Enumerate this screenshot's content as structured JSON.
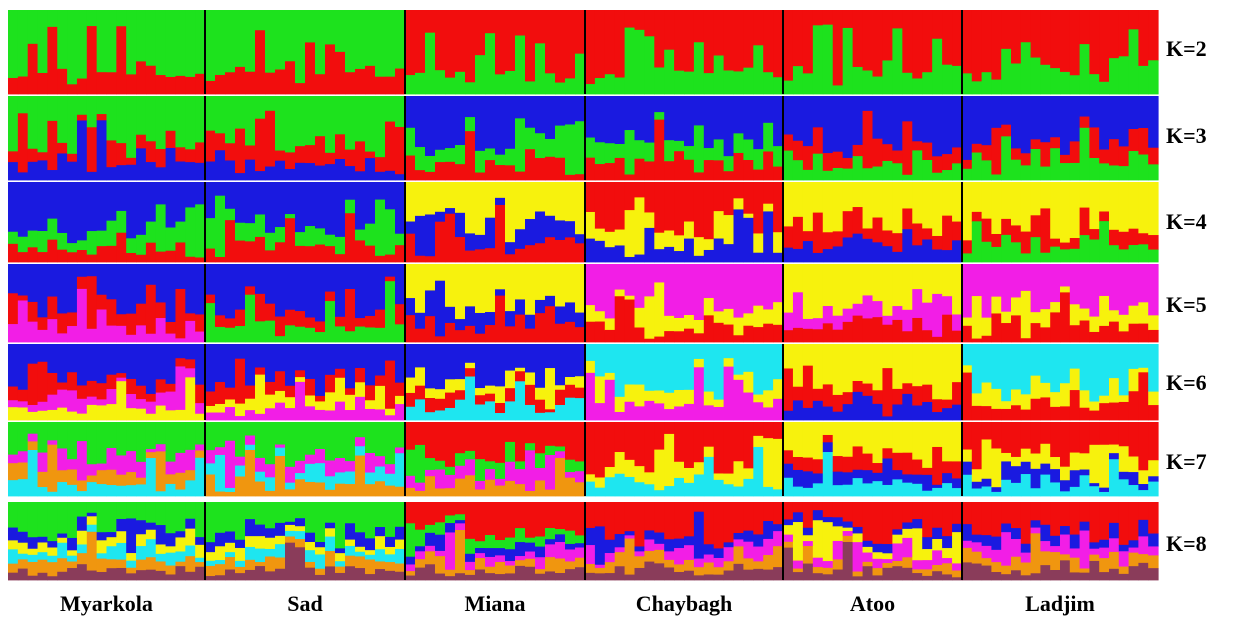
{
  "chart_data": {
    "type": "stacked-bar",
    "populations": [
      {
        "name": "Myarkola",
        "n": 20
      },
      {
        "name": "Sad",
        "n": 20
      },
      {
        "name": "Miana",
        "n": 18
      },
      {
        "name": "Chaybagh",
        "n": 20
      },
      {
        "name": "Atoo",
        "n": 18
      },
      {
        "name": "Ladjim",
        "n": 20
      }
    ],
    "panels": [
      {
        "label": "K=2",
        "dominant": {
          "Myarkola": [
            "green",
            "red"
          ],
          "Sad": [
            "green",
            "red"
          ],
          "Miana": [
            "red",
            "green"
          ],
          "Chaybagh": [
            "red",
            "green"
          ],
          "Atoo": [
            "red",
            "green"
          ],
          "Ladjim": [
            "red",
            "green"
          ]
        }
      },
      {
        "label": "K=3",
        "dominant": {
          "Myarkola": [
            "green",
            "red",
            "blue"
          ],
          "Sad": [
            "green",
            "red",
            "blue"
          ],
          "Miana": [
            "blue",
            "green",
            "red"
          ],
          "Chaybagh": [
            "blue",
            "green",
            "red"
          ],
          "Atoo": [
            "blue",
            "red",
            "green"
          ],
          "Ladjim": [
            "blue",
            "red",
            "green"
          ]
        }
      },
      {
        "label": "K=4",
        "dominant": {
          "Myarkola": [
            "blue",
            "green",
            "red"
          ],
          "Sad": [
            "blue",
            "green",
            "red"
          ],
          "Miana": [
            "yellow",
            "blue",
            "red"
          ],
          "Chaybagh": [
            "red",
            "yellow",
            "blue"
          ],
          "Atoo": [
            "yellow",
            "red",
            "blue"
          ],
          "Ladjim": [
            "yellow",
            "red",
            "green"
          ]
        }
      },
      {
        "label": "K=5",
        "dominant": {
          "Myarkola": [
            "blue",
            "red",
            "magenta"
          ],
          "Sad": [
            "blue",
            "red",
            "green"
          ],
          "Miana": [
            "yellow",
            "blue",
            "red"
          ],
          "Chaybagh": [
            "magenta",
            "yellow",
            "red"
          ],
          "Atoo": [
            "yellow",
            "magenta",
            "red"
          ],
          "Ladjim": [
            "magenta",
            "yellow",
            "red"
          ]
        }
      },
      {
        "label": "K=6",
        "dominant": {
          "Myarkola": [
            "blue",
            "red",
            "magenta",
            "yellow"
          ],
          "Sad": [
            "blue",
            "red",
            "yellow",
            "magenta"
          ],
          "Miana": [
            "blue",
            "yellow",
            "red",
            "cyan"
          ],
          "Chaybagh": [
            "cyan",
            "yellow",
            "magenta"
          ],
          "Atoo": [
            "yellow",
            "red",
            "blue"
          ],
          "Ladjim": [
            "cyan",
            "yellow",
            "red"
          ]
        }
      },
      {
        "label": "K=7",
        "dominant": {
          "Myarkola": [
            "green",
            "magenta",
            "orange",
            "cyan"
          ],
          "Sad": [
            "green",
            "magenta",
            "cyan",
            "orange"
          ],
          "Miana": [
            "red",
            "green",
            "magenta",
            "orange"
          ],
          "Chaybagh": [
            "red",
            "yellow",
            "cyan"
          ],
          "Atoo": [
            "yellow",
            "red",
            "blue",
            "cyan"
          ],
          "Ladjim": [
            "red",
            "yellow",
            "blue",
            "cyan"
          ]
        }
      },
      {
        "label": "K=8",
        "dominant": {
          "Myarkola": [
            "green",
            "blue",
            "yellow",
            "cyan",
            "orange",
            "brown"
          ],
          "Sad": [
            "green",
            "blue",
            "yellow",
            "cyan",
            "orange",
            "brown"
          ],
          "Miana": [
            "red",
            "green",
            "blue",
            "magenta",
            "orange",
            "brown"
          ],
          "Chaybagh": [
            "red",
            "blue",
            "magenta",
            "orange",
            "brown"
          ],
          "Atoo": [
            "red",
            "blue",
            "yellow",
            "magenta",
            "orange",
            "brown"
          ],
          "Ladjim": [
            "red",
            "blue",
            "magenta",
            "orange",
            "brown"
          ]
        }
      }
    ],
    "palette": {
      "red": "#f20d0d",
      "green": "#1de21d",
      "blue": "#1a1ae0",
      "yellow": "#f7f20d",
      "magenta": "#f21ee6",
      "cyan": "#1ee6f0",
      "orange": "#f0960f",
      "brown": "#8a3c5a"
    },
    "separator_color": "#000000"
  }
}
